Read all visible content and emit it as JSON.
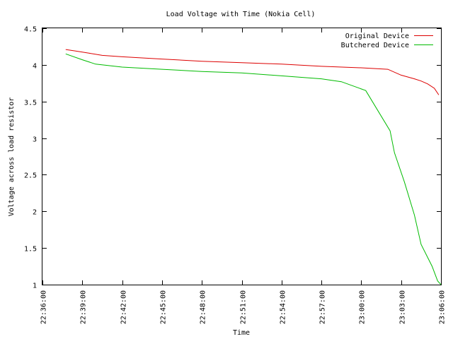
{
  "chart_data": {
    "type": "line",
    "title": "Load Voltage with Time (Nokia Cell)",
    "xlabel": "Time",
    "ylabel": "Voltage across load resistor",
    "x_ticks": [
      "22:36:00",
      "22:39:00",
      "22:42:00",
      "22:45:00",
      "22:48:00",
      "22:51:00",
      "22:54:00",
      "22:57:00",
      "23:00:00",
      "23:03:00",
      "23:06:00"
    ],
    "y_ticks": [
      "1",
      "1.5",
      "2",
      "2.5",
      "3",
      "3.5",
      "4",
      "4.5"
    ],
    "xlim": [
      "22:36:00",
      "23:06:00"
    ],
    "ylim": [
      1,
      4.5
    ],
    "grid": false,
    "legend_position": "top-right",
    "series": [
      {
        "name": "Original Device",
        "color": "#dd0000",
        "points": [
          [
            "22:37:45",
            4.21
          ],
          [
            "22:38:30",
            4.19
          ],
          [
            "22:39:30",
            4.16
          ],
          [
            "22:40:30",
            4.13
          ],
          [
            "22:42:00",
            4.11
          ],
          [
            "22:45:00",
            4.08
          ],
          [
            "22:48:00",
            4.05
          ],
          [
            "22:51:00",
            4.03
          ],
          [
            "22:54:00",
            4.01
          ],
          [
            "22:57:00",
            3.98
          ],
          [
            "23:00:00",
            3.96
          ],
          [
            "23:02:00",
            3.94
          ],
          [
            "23:03:00",
            3.86
          ],
          [
            "23:04:00",
            3.81
          ],
          [
            "23:04:30",
            3.78
          ],
          [
            "23:05:00",
            3.74
          ],
          [
            "23:05:30",
            3.68
          ],
          [
            "23:05:50",
            3.59
          ]
        ]
      },
      {
        "name": "Butchered Device",
        "color": "#00bb00",
        "points": [
          [
            "22:37:45",
            4.15
          ],
          [
            "22:39:00",
            4.07
          ],
          [
            "22:40:00",
            4.01
          ],
          [
            "22:42:00",
            3.97
          ],
          [
            "22:45:00",
            3.94
          ],
          [
            "22:48:00",
            3.91
          ],
          [
            "22:51:00",
            3.89
          ],
          [
            "22:54:00",
            3.85
          ],
          [
            "22:57:00",
            3.81
          ],
          [
            "22:58:30",
            3.77
          ],
          [
            "23:00:20",
            3.65
          ],
          [
            "23:02:10",
            3.1
          ],
          [
            "23:02:30",
            2.8
          ],
          [
            "23:03:15",
            2.4
          ],
          [
            "23:04:00",
            1.95
          ],
          [
            "23:04:30",
            1.55
          ],
          [
            "23:05:20",
            1.25
          ],
          [
            "23:05:45",
            1.05
          ],
          [
            "23:06:00",
            1.0
          ]
        ]
      }
    ]
  }
}
